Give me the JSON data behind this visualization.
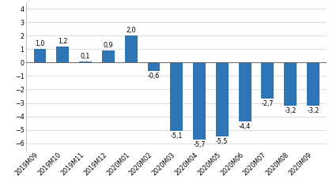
{
  "categories": [
    "2019M09",
    "2019M10",
    "2019M11",
    "2019M12",
    "2020M01",
    "2020M02",
    "2020M03",
    "2020M04",
    "2020M05",
    "2020M06",
    "2020M07",
    "2020M08",
    "2020M09"
  ],
  "values": [
    1.0,
    1.2,
    0.1,
    0.9,
    2.0,
    -0.6,
    -5.1,
    -5.7,
    -5.5,
    -4.4,
    -2.7,
    -3.2,
    -3.2
  ],
  "bar_color": "#2e75b6",
  "ylim": [
    -6.5,
    4.5
  ],
  "yticks": [
    -6,
    -5,
    -4,
    -3,
    -2,
    -1,
    0,
    1,
    2,
    3,
    4
  ],
  "value_labels": [
    "1,0",
    "1,2",
    "0,1",
    "0,9",
    "2,0",
    "-0,6",
    "-5,1",
    "-5,7",
    "-5,5",
    "-4,4",
    "-2,7",
    "-3,2",
    "-3,2"
  ],
  "background_color": "#ffffff",
  "grid_color": "#d0d0d0",
  "label_fontsize": 5.8,
  "tick_fontsize": 5.8,
  "bar_width": 0.55
}
